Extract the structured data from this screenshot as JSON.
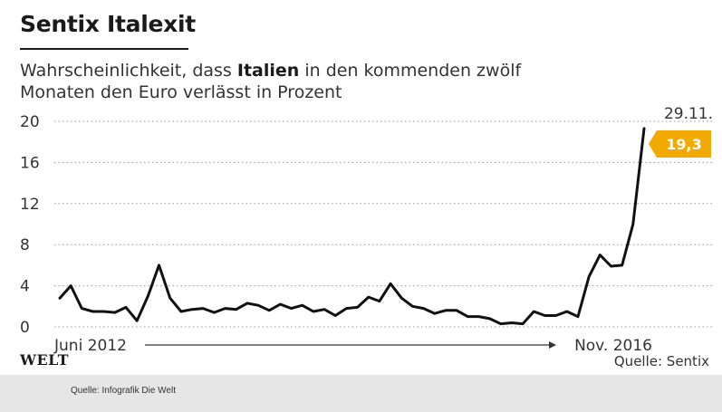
{
  "title": "Sentix Italexit",
  "subtitle": {
    "before": "Wahrscheinlichkeit, dass ",
    "bold": "Italien",
    "after": " in den kommenden zwölf Monaten den Euro verlässt in Prozent"
  },
  "brand": "WELT",
  "source_right": "Quelle: Sentix",
  "caption": "Quelle: Infografik Die Welt",
  "colors": {
    "line": "#111111",
    "highlight": "#f2a900",
    "grid": "#9a9a9a"
  },
  "chart_data": {
    "type": "line",
    "title": "Sentix Italexit",
    "ylabel": "",
    "xlabel": "",
    "ylim": [
      0,
      20
    ],
    "yticks": [
      "0",
      "4",
      "8",
      "12",
      "16",
      "20"
    ],
    "x_start_label": "Juni 2012",
    "x_end_label": "Nov. 2016",
    "last_date_label": "29.11.",
    "last_value_label": "19,3",
    "grid": "horizontal dotted",
    "series": [
      {
        "values": [
          2.8,
          4.0,
          1.8,
          1.5,
          1.5,
          1.4,
          1.9,
          0.6,
          3.0,
          6.0,
          2.8,
          1.5,
          1.7,
          1.8,
          1.4,
          1.8,
          1.7,
          2.3,
          2.1,
          1.6,
          2.2,
          1.8,
          2.1,
          1.5,
          1.7,
          1.1,
          1.8,
          1.9,
          2.9,
          2.5,
          4.2,
          2.8,
          2.0,
          1.8,
          1.3,
          1.6,
          1.6,
          1.0,
          1.0,
          0.8,
          0.3,
          0.4,
          0.3,
          1.5,
          1.1,
          1.1,
          1.5,
          1.0,
          4.9,
          7.0,
          5.9,
          6.0,
          10.0,
          19.3
        ]
      }
    ]
  }
}
